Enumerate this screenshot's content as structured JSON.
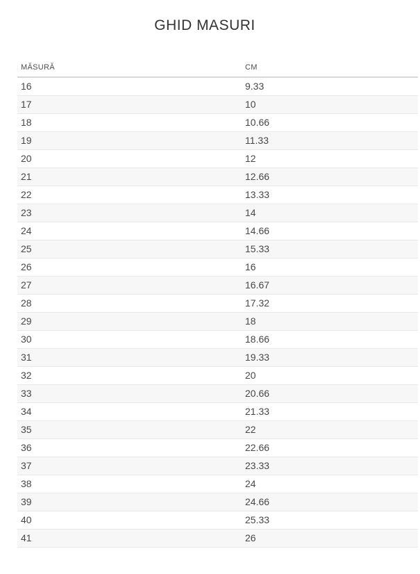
{
  "page": {
    "title": "GHID MASURI"
  },
  "table": {
    "columns": [
      {
        "label": "MĂSURĂ"
      },
      {
        "label": "CM"
      }
    ],
    "rows": [
      {
        "size": "16",
        "cm": "9.33"
      },
      {
        "size": "17",
        "cm": "10"
      },
      {
        "size": "18",
        "cm": "10.66"
      },
      {
        "size": "19",
        "cm": "11.33"
      },
      {
        "size": "20",
        "cm": "12"
      },
      {
        "size": "21",
        "cm": "12.66"
      },
      {
        "size": "22",
        "cm": "13.33"
      },
      {
        "size": "23",
        "cm": "14"
      },
      {
        "size": "24",
        "cm": "14.66"
      },
      {
        "size": "25",
        "cm": "15.33"
      },
      {
        "size": "26",
        "cm": "16"
      },
      {
        "size": "27",
        "cm": "16.67"
      },
      {
        "size": "28",
        "cm": "17.32"
      },
      {
        "size": "29",
        "cm": "18"
      },
      {
        "size": "30",
        "cm": "18.66"
      },
      {
        "size": "31",
        "cm": "19.33"
      },
      {
        "size": "32",
        "cm": "20"
      },
      {
        "size": "33",
        "cm": "20.66"
      },
      {
        "size": "34",
        "cm": "21.33"
      },
      {
        "size": "35",
        "cm": "22"
      },
      {
        "size": "36",
        "cm": "22.66"
      },
      {
        "size": "37",
        "cm": "23.33"
      },
      {
        "size": "38",
        "cm": "24"
      },
      {
        "size": "39",
        "cm": "24.66"
      },
      {
        "size": "40",
        "cm": "25.33"
      },
      {
        "size": "41",
        "cm": "26"
      }
    ]
  },
  "colors": {
    "title_text": "#333333",
    "body_text": "#474747",
    "header_text": "#4d4d4d",
    "stripe": "#f7f7f7",
    "header_border": "#d8d8d8",
    "row_border": "#e9e9e9",
    "background": "#ffffff"
  }
}
